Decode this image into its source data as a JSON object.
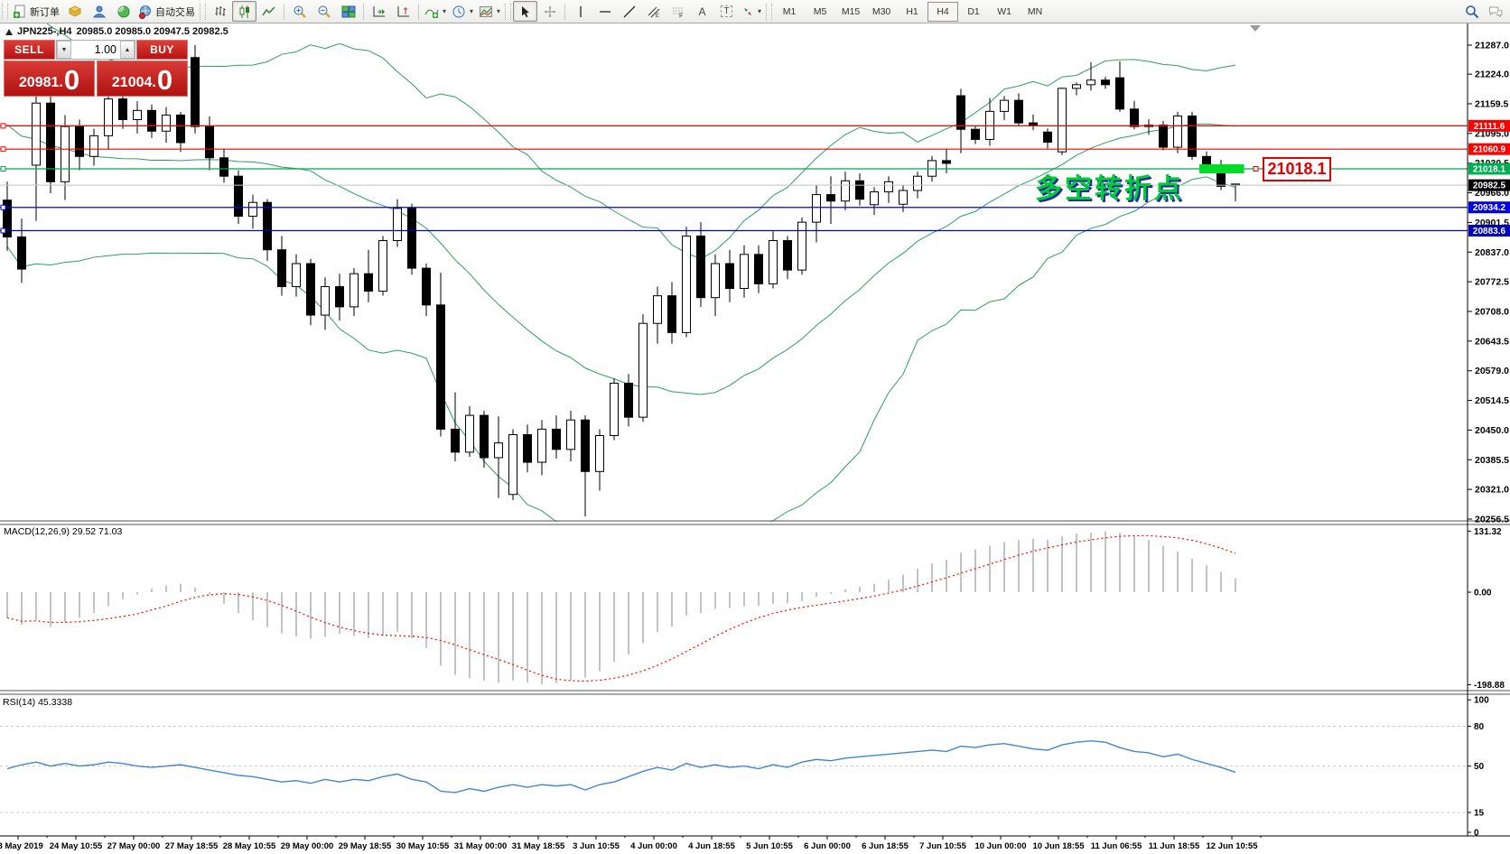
{
  "toolbar": {
    "new_order_label": "新订单",
    "auto_trading_label": "自动交易",
    "timeframes": [
      "M1",
      "M5",
      "M15",
      "M30",
      "H1",
      "H4",
      "D1",
      "W1",
      "MN"
    ],
    "active_timeframe": "H4",
    "drawing_tools": {
      "text_a": "A",
      "text_t": "T",
      "channel_letter": "E",
      "fibo_letter": "F"
    }
  },
  "quote_panel": {
    "sell_label": "SELL",
    "buy_label": "BUY",
    "volume": "1.00",
    "sell_price_main": "20981.",
    "sell_price_big": "0",
    "buy_price_main": "21004.",
    "buy_price_big": "0"
  },
  "chart_data": {
    "type": "candlestick",
    "symbol_period": "JPN225-,H4",
    "ohlc_line": "20985.0 20985.0 20947.5 20982.5",
    "price_axis_labels": [
      "21287.0",
      "21224.0",
      "21159.5",
      "21095.0",
      "21030.5",
      "20966.0",
      "20901.5",
      "20837.0",
      "20772.5",
      "20708.0",
      "20643.5",
      "20579.0",
      "20514.5",
      "20450.0",
      "20385.5",
      "20321.0",
      "20256.5"
    ],
    "time_labels": [
      "23 May 2019",
      "24 May 10:55",
      "27 May 00:00",
      "27 May 18:55",
      "28 May 10:55",
      "29 May 00:00",
      "29 May 18:55",
      "30 May 10:55",
      "31 May 00:00",
      "31 May 18:55",
      "3 Jun 10:55",
      "4 Jun 00:00",
      "4 Jun 18:55",
      "5 Jun 10:55",
      "6 Jun 00:00",
      "6 Jun 18:55",
      "7 Jun 10:55",
      "10 Jun 00:00",
      "10 Jun 18:55",
      "11 Jun 06:55",
      "11 Jun 18:55",
      "12 Jun 10:55"
    ],
    "candles": [
      [
        20950,
        20990,
        20840,
        20870
      ],
      [
        20870,
        20910,
        20770,
        20800
      ],
      [
        21026,
        21175,
        20905,
        21161
      ],
      [
        21161,
        21180,
        20965,
        20990
      ],
      [
        20990,
        21135,
        20950,
        21110
      ],
      [
        21110,
        21125,
        21015,
        21045
      ],
      [
        21045,
        21105,
        21025,
        21090
      ],
      [
        21090,
        21200,
        21060,
        21170
      ],
      [
        21170,
        21188,
        21105,
        21125
      ],
      [
        21125,
        21165,
        21095,
        21145
      ],
      [
        21145,
        21158,
        21085,
        21100
      ],
      [
        21100,
        21152,
        21075,
        21135
      ],
      [
        21135,
        21142,
        21055,
        21075
      ],
      [
        21260,
        21287,
        21095,
        21110
      ],
      [
        21110,
        21132,
        21015,
        21042
      ],
      [
        21042,
        21062,
        20988,
        21002
      ],
      [
        21002,
        21015,
        20898,
        20915
      ],
      [
        20915,
        20962,
        20888,
        20945
      ],
      [
        20945,
        20952,
        20818,
        20842
      ],
      [
        20842,
        20872,
        20742,
        20762
      ],
      [
        20762,
        20832,
        20740,
        20812
      ],
      [
        20812,
        20822,
        20678,
        20700
      ],
      [
        20700,
        20782,
        20668,
        20762
      ],
      [
        20762,
        20790,
        20688,
        20718
      ],
      [
        20718,
        20802,
        20698,
        20790
      ],
      [
        20790,
        20842,
        20728,
        20752
      ],
      [
        20752,
        20872,
        20742,
        20862
      ],
      [
        20862,
        20952,
        20848,
        20932
      ],
      [
        20932,
        20942,
        20788,
        20802
      ],
      [
        20802,
        20812,
        20698,
        20722
      ],
      [
        20722,
        20792,
        20436,
        20452
      ],
      [
        20452,
        20532,
        20382,
        20402
      ],
      [
        20402,
        20502,
        20392,
        20482
      ],
      [
        20482,
        20492,
        20368,
        20390
      ],
      [
        20390,
        20480,
        20302,
        20422
      ],
      [
        20310,
        20452,
        20298,
        20440
      ],
      [
        20440,
        20462,
        20358,
        20380
      ],
      [
        20380,
        20472,
        20352,
        20452
      ],
      [
        20452,
        20482,
        20388,
        20408
      ],
      [
        20408,
        20492,
        20382,
        20472
      ],
      [
        20472,
        20482,
        20262,
        20360
      ],
      [
        20360,
        20452,
        20318,
        20438
      ],
      [
        20438,
        20562,
        20428,
        20552
      ],
      [
        20552,
        20572,
        20458,
        20478
      ],
      [
        20478,
        20702,
        20468,
        20682
      ],
      [
        20682,
        20762,
        20638,
        20742
      ],
      [
        20742,
        20772,
        20638,
        20662
      ],
      [
        20662,
        20892,
        20652,
        20872
      ],
      [
        20872,
        20902,
        20718,
        20738
      ],
      [
        20738,
        20832,
        20698,
        20812
      ],
      [
        20812,
        20842,
        20728,
        20758
      ],
      [
        20758,
        20852,
        20738,
        20832
      ],
      [
        20832,
        20852,
        20748,
        20768
      ],
      [
        20768,
        20882,
        20758,
        20862
      ],
      [
        20862,
        20872,
        20778,
        20798
      ],
      [
        20798,
        20912,
        20788,
        20902
      ],
      [
        20902,
        20982,
        20858,
        20962
      ],
      [
        20962,
        21002,
        20898,
        20948
      ],
      [
        20948,
        21012,
        20928,
        20992
      ],
      [
        20992,
        21008,
        20938,
        20952
      ],
      [
        20940,
        20978,
        20918,
        20968
      ],
      [
        20968,
        21002,
        20944,
        20990
      ],
      [
        20941,
        20982,
        20924,
        20971
      ],
      [
        20971,
        21012,
        20954,
        21002
      ],
      [
        21002,
        21046,
        20990,
        21036
      ],
      [
        21036,
        21062,
        21008,
        21030
      ],
      [
        21177,
        21192,
        21052,
        21104
      ],
      [
        21104,
        21112,
        21072,
        21082
      ],
      [
        21082,
        21172,
        21068,
        21143
      ],
      [
        21143,
        21176,
        21124,
        21167
      ],
      [
        21167,
        21182,
        21112,
        21118
      ],
      [
        21118,
        21136,
        21102,
        21112
      ],
      [
        21098,
        21106,
        21062,
        21076
      ],
      [
        21055,
        21195,
        21048,
        21193
      ],
      [
        21193,
        21206,
        21178,
        21201
      ],
      [
        21201,
        21250,
        21188,
        21211
      ],
      [
        21211,
        21218,
        21192,
        21201
      ],
      [
        21216,
        21252,
        21142,
        21148
      ],
      [
        21148,
        21166,
        21104,
        21110
      ],
      [
        21110,
        21126,
        21092,
        21113
      ],
      [
        21113,
        21122,
        21058,
        21065
      ],
      [
        21065,
        21142,
        21052,
        21133
      ],
      [
        21133,
        21142,
        21038,
        21045
      ],
      [
        21045,
        21056,
        21018,
        21027
      ],
      [
        21027,
        21038,
        20972,
        20980
      ],
      [
        20985,
        20985,
        20947.5,
        20982.5
      ]
    ],
    "bollinger": {
      "period": 20,
      "deviation": 2,
      "color": "#2E9E63",
      "history_closes": [
        21280,
        21300,
        21290,
        21270,
        21250,
        21230,
        21240,
        21210,
        21180,
        21150,
        21160,
        21130,
        21100,
        21070,
        21040,
        21010,
        20990,
        20960,
        20930,
        20900
      ]
    },
    "levels": [
      {
        "value": 21111.6,
        "badge": "21111.6",
        "color": "#FF0000",
        "badge_bg": "#FF0000"
      },
      {
        "value": 21060.9,
        "badge": "21060.9",
        "color": "#FF0000",
        "badge_bg": "#FF0000"
      },
      {
        "value": 21018.1,
        "badge": "21018.1",
        "color": "#00A651",
        "badge_bg": "#00B050",
        "right_marker": true,
        "right_marker_color": "#E00000"
      },
      {
        "value": 20934.2,
        "badge": "20934.2",
        "color": "#0000FF",
        "badge_bg": "#0000E0"
      },
      {
        "value": 20883.6,
        "badge": "20883.6",
        "color": "#0000C0",
        "badge_bg": "#0000B4"
      }
    ],
    "current_price": {
      "value": 20982.5,
      "badge": "20982.5",
      "line_color": "#C0C0C0",
      "badge_bg": "#000000"
    },
    "highlight_bar": {
      "x1_index": 82.5,
      "x2_index": 85.6,
      "price": 21018.1,
      "color": "#00DC28"
    },
    "macd": {
      "label": "MACD(12,26,9)",
      "values_label": "29.52 71.03",
      "axis_labels": [
        "131.32",
        "0.00",
        "-198.88"
      ],
      "bar_color": "#C4C4C4",
      "signal_color": "#FF0000",
      "signal_period": 9,
      "histogram": [
        -55,
        -70,
        -60,
        -75,
        -65,
        -55,
        -45,
        -30,
        -15,
        -5,
        8,
        14,
        18,
        10,
        -5,
        -25,
        -45,
        -60,
        -75,
        -88,
        -95,
        -100,
        -96,
        -90,
        -94,
        -99,
        -94,
        -85,
        -99,
        -120,
        -158,
        -178,
        -185,
        -190,
        -195,
        -190,
        -194,
        -198,
        -195,
        -189,
        -184,
        -170,
        -150,
        -134,
        -110,
        -86,
        -74,
        -50,
        -45,
        -36,
        -34,
        -30,
        -29,
        -25,
        -24,
        -19,
        -10,
        -4,
        6,
        12,
        18,
        28,
        38,
        50,
        62,
        70,
        85,
        92,
        100,
        108,
        112,
        115,
        113,
        120,
        126,
        128,
        131,
        128,
        120,
        112,
        100,
        88,
        72,
        58,
        44,
        29.52
      ]
    },
    "rsi": {
      "label": "RSI(14)",
      "value_label": "45.3338",
      "axis_labels": [
        "100",
        "80",
        "50",
        "15",
        "0"
      ],
      "level_lines": [
        80,
        50,
        15
      ],
      "line_color": "#4685CE",
      "values": [
        48,
        51,
        53,
        50,
        52,
        50,
        51,
        53,
        52,
        50,
        49,
        50,
        51,
        49,
        47,
        45,
        43,
        42,
        40,
        38,
        39,
        37,
        40,
        38,
        40,
        39,
        42,
        44,
        40,
        38,
        31,
        30,
        33,
        31,
        34,
        36,
        34,
        36,
        35,
        36,
        32,
        36,
        38,
        42,
        46,
        49,
        47,
        52,
        49,
        51,
        49,
        50,
        48,
        51,
        49,
        53,
        55,
        54,
        56,
        57,
        58,
        59,
        60,
        61,
        62,
        61,
        65,
        64,
        66,
        67,
        65,
        63,
        62,
        66,
        68,
        69,
        68,
        64,
        61,
        60,
        57,
        59,
        55,
        52,
        49,
        45.33
      ]
    },
    "annotation": {
      "text": "多空转折点",
      "price_label": "21018.1"
    }
  }
}
